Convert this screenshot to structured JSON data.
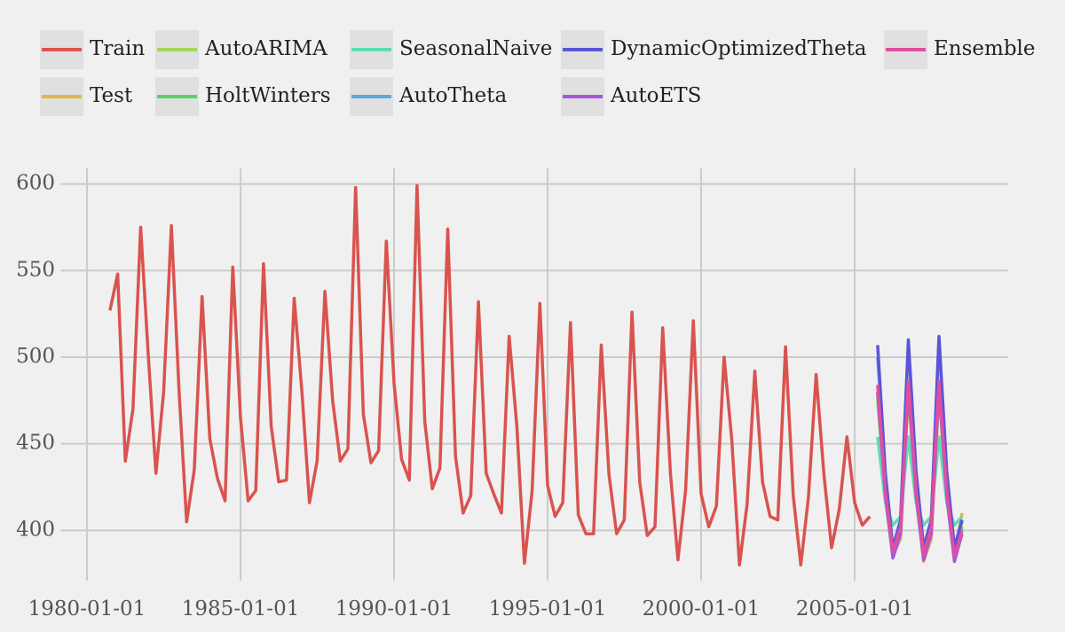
{
  "chart_data": {
    "type": "line",
    "xlim": [
      "1979-01-01",
      "2010-01-01"
    ],
    "xticks": [
      "1980-01-01",
      "1985-01-01",
      "1990-01-01",
      "1995-01-01",
      "2000-01-01",
      "2005-01-01"
    ],
    "ylim": [
      371,
      609
    ],
    "yticks": [
      400,
      450,
      500,
      550,
      600
    ],
    "grid": true,
    "legend": "top",
    "series": [
      {
        "name": "Train",
        "color": "#d9534f",
        "x": [
          "1980-10-01",
          "1981-01-01",
          "1981-04-01",
          "1981-07-01",
          "1981-10-01",
          "1982-01-01",
          "1982-04-01",
          "1982-07-01",
          "1982-10-01",
          "1983-01-01",
          "1983-04-01",
          "1983-07-01",
          "1983-10-01",
          "1984-01-01",
          "1984-04-01",
          "1984-07-01",
          "1984-10-01",
          "1985-01-01",
          "1985-04-01",
          "1985-07-01",
          "1985-10-01",
          "1986-01-01",
          "1986-04-01",
          "1986-07-01",
          "1986-10-01",
          "1987-01-01",
          "1987-04-01",
          "1987-07-01",
          "1987-10-01",
          "1988-01-01",
          "1988-04-01",
          "1988-07-01",
          "1988-10-01",
          "1989-01-01",
          "1989-04-01",
          "1989-07-01",
          "1989-10-01",
          "1990-01-01",
          "1990-04-01",
          "1990-07-01",
          "1990-10-01",
          "1991-01-01",
          "1991-04-01",
          "1991-07-01",
          "1991-10-01",
          "1992-01-01",
          "1992-04-01",
          "1992-07-01",
          "1992-10-01",
          "1993-01-01",
          "1993-04-01",
          "1993-07-01",
          "1993-10-01",
          "1994-01-01",
          "1994-04-01",
          "1994-07-01",
          "1994-10-01",
          "1995-01-01",
          "1995-04-01",
          "1995-07-01",
          "1995-10-01",
          "1996-01-01",
          "1996-04-01",
          "1996-07-01",
          "1996-10-01",
          "1997-01-01",
          "1997-04-01",
          "1997-07-01",
          "1997-10-01",
          "1998-01-01",
          "1998-04-01",
          "1998-07-01",
          "1998-10-01",
          "1999-01-01",
          "1999-04-01",
          "1999-07-01",
          "1999-10-01",
          "2000-01-01",
          "2000-04-01",
          "2000-07-01",
          "2000-10-01",
          "2001-01-01",
          "2001-04-01",
          "2001-07-01",
          "2001-10-01",
          "2002-01-01",
          "2002-04-01",
          "2002-07-01",
          "2002-10-01",
          "2003-01-01",
          "2003-04-01",
          "2003-07-01",
          "2003-10-01",
          "2004-01-01",
          "2004-04-01",
          "2004-07-01",
          "2004-10-01",
          "2005-01-01",
          "2005-04-01",
          "2005-07-01"
        ],
        "values": [
          527,
          548,
          440,
          470,
          575,
          500,
          433,
          480,
          576,
          480,
          405,
          435,
          535,
          453,
          430,
          417,
          552,
          465,
          417,
          423,
          554,
          460,
          428,
          429,
          534,
          480,
          416,
          440,
          538,
          475,
          440,
          447,
          598,
          467,
          439,
          446,
          567,
          485,
          441,
          429,
          599,
          463,
          424,
          436,
          574,
          443,
          410,
          420,
          532,
          433,
          421,
          410,
          512,
          460,
          381,
          423,
          531,
          426,
          408,
          416,
          520,
          409,
          398,
          398,
          507,
          432,
          398,
          406,
          526,
          428,
          397,
          402,
          517,
          433,
          383,
          423,
          521,
          421,
          402,
          414,
          500,
          452,
          380,
          415,
          492,
          428,
          408,
          406,
          506,
          420,
          380,
          419,
          490,
          432,
          390,
          412,
          454,
          416,
          403,
          408
        ]
      },
      {
        "name": "Test",
        "color": "#e0b84a",
        "x": [
          "2005-10-01",
          "2006-01-01",
          "2006-04-01",
          "2006-07-01",
          "2006-10-01",
          "2007-01-01",
          "2007-04-01",
          "2007-07-01",
          "2007-10-01",
          "2008-01-01",
          "2008-04-01",
          "2008-07-01"
        ],
        "values": [
          480,
          425,
          386,
          395,
          480,
          420,
          382,
          395,
          480,
          420,
          385,
          410
        ]
      },
      {
        "name": "AutoARIMA",
        "color": "#a6d65a",
        "x": [
          "2005-10-01",
          "2006-01-01",
          "2006-04-01",
          "2006-07-01",
          "2006-10-01",
          "2007-01-01",
          "2007-04-01",
          "2007-07-01",
          "2007-10-01",
          "2008-01-01",
          "2008-04-01",
          "2008-07-01"
        ],
        "values": [
          475,
          420,
          388,
          400,
          478,
          425,
          387,
          400,
          478,
          425,
          386,
          405
        ]
      },
      {
        "name": "HoltWinters",
        "color": "#55d465",
        "x": [
          "2005-10-01",
          "2006-01-01",
          "2006-04-01",
          "2006-07-01",
          "2006-10-01",
          "2007-01-01",
          "2007-04-01",
          "2007-07-01",
          "2007-10-01",
          "2008-01-01",
          "2008-04-01",
          "2008-07-01"
        ],
        "values": [
          478,
          418,
          386,
          400,
          482,
          418,
          385,
          400,
          482,
          418,
          384,
          402
        ]
      },
      {
        "name": "SeasonalNaive",
        "color": "#5fdcb4",
        "x": [
          "2005-10-01",
          "2006-01-01",
          "2006-04-01",
          "2006-07-01",
          "2006-10-01",
          "2007-01-01",
          "2007-04-01",
          "2007-07-01",
          "2007-10-01",
          "2008-01-01",
          "2008-04-01",
          "2008-07-01"
        ],
        "values": [
          454,
          416,
          403,
          408,
          454,
          416,
          403,
          408,
          454,
          416,
          403,
          408
        ]
      },
      {
        "name": "AutoTheta",
        "color": "#5aa8de",
        "x": [
          "2005-10-01",
          "2006-01-01",
          "2006-04-01",
          "2006-07-01",
          "2006-10-01",
          "2007-01-01",
          "2007-04-01",
          "2007-07-01",
          "2007-10-01",
          "2008-01-01",
          "2008-04-01",
          "2008-07-01"
        ],
        "values": [
          500,
          430,
          390,
          405,
          508,
          432,
          390,
          405,
          510,
          432,
          390,
          406
        ]
      },
      {
        "name": "DynamicOptimizedTheta",
        "color": "#5a55d6",
        "x": [
          "2005-10-01",
          "2006-01-01",
          "2006-04-01",
          "2006-07-01",
          "2006-10-01",
          "2007-01-01",
          "2007-04-01",
          "2007-07-01",
          "2007-10-01",
          "2008-01-01",
          "2008-04-01",
          "2008-07-01"
        ],
        "values": [
          507,
          433,
          390,
          406,
          510,
          434,
          390,
          406,
          512,
          434,
          390,
          406
        ]
      },
      {
        "name": "AutoETS",
        "color": "#a855e0",
        "x": [
          "2005-10-01",
          "2006-01-01",
          "2006-04-01",
          "2006-07-01",
          "2006-10-01",
          "2007-01-01",
          "2007-04-01",
          "2007-07-01",
          "2007-10-01",
          "2008-01-01",
          "2008-04-01",
          "2008-07-01"
        ],
        "values": [
          480,
          420,
          384,
          398,
          482,
          420,
          383,
          398,
          482,
          420,
          382,
          398
        ]
      },
      {
        "name": "Ensemble",
        "color": "#df4fa0",
        "x": [
          "2005-10-01",
          "2006-01-01",
          "2006-04-01",
          "2006-07-01",
          "2006-10-01",
          "2007-01-01",
          "2007-04-01",
          "2007-07-01",
          "2007-10-01",
          "2008-01-01",
          "2008-04-01",
          "2008-07-01"
        ],
        "values": [
          484,
          422,
          388,
          402,
          486,
          423,
          386,
          402,
          486,
          423,
          385,
          400
        ]
      }
    ]
  }
}
